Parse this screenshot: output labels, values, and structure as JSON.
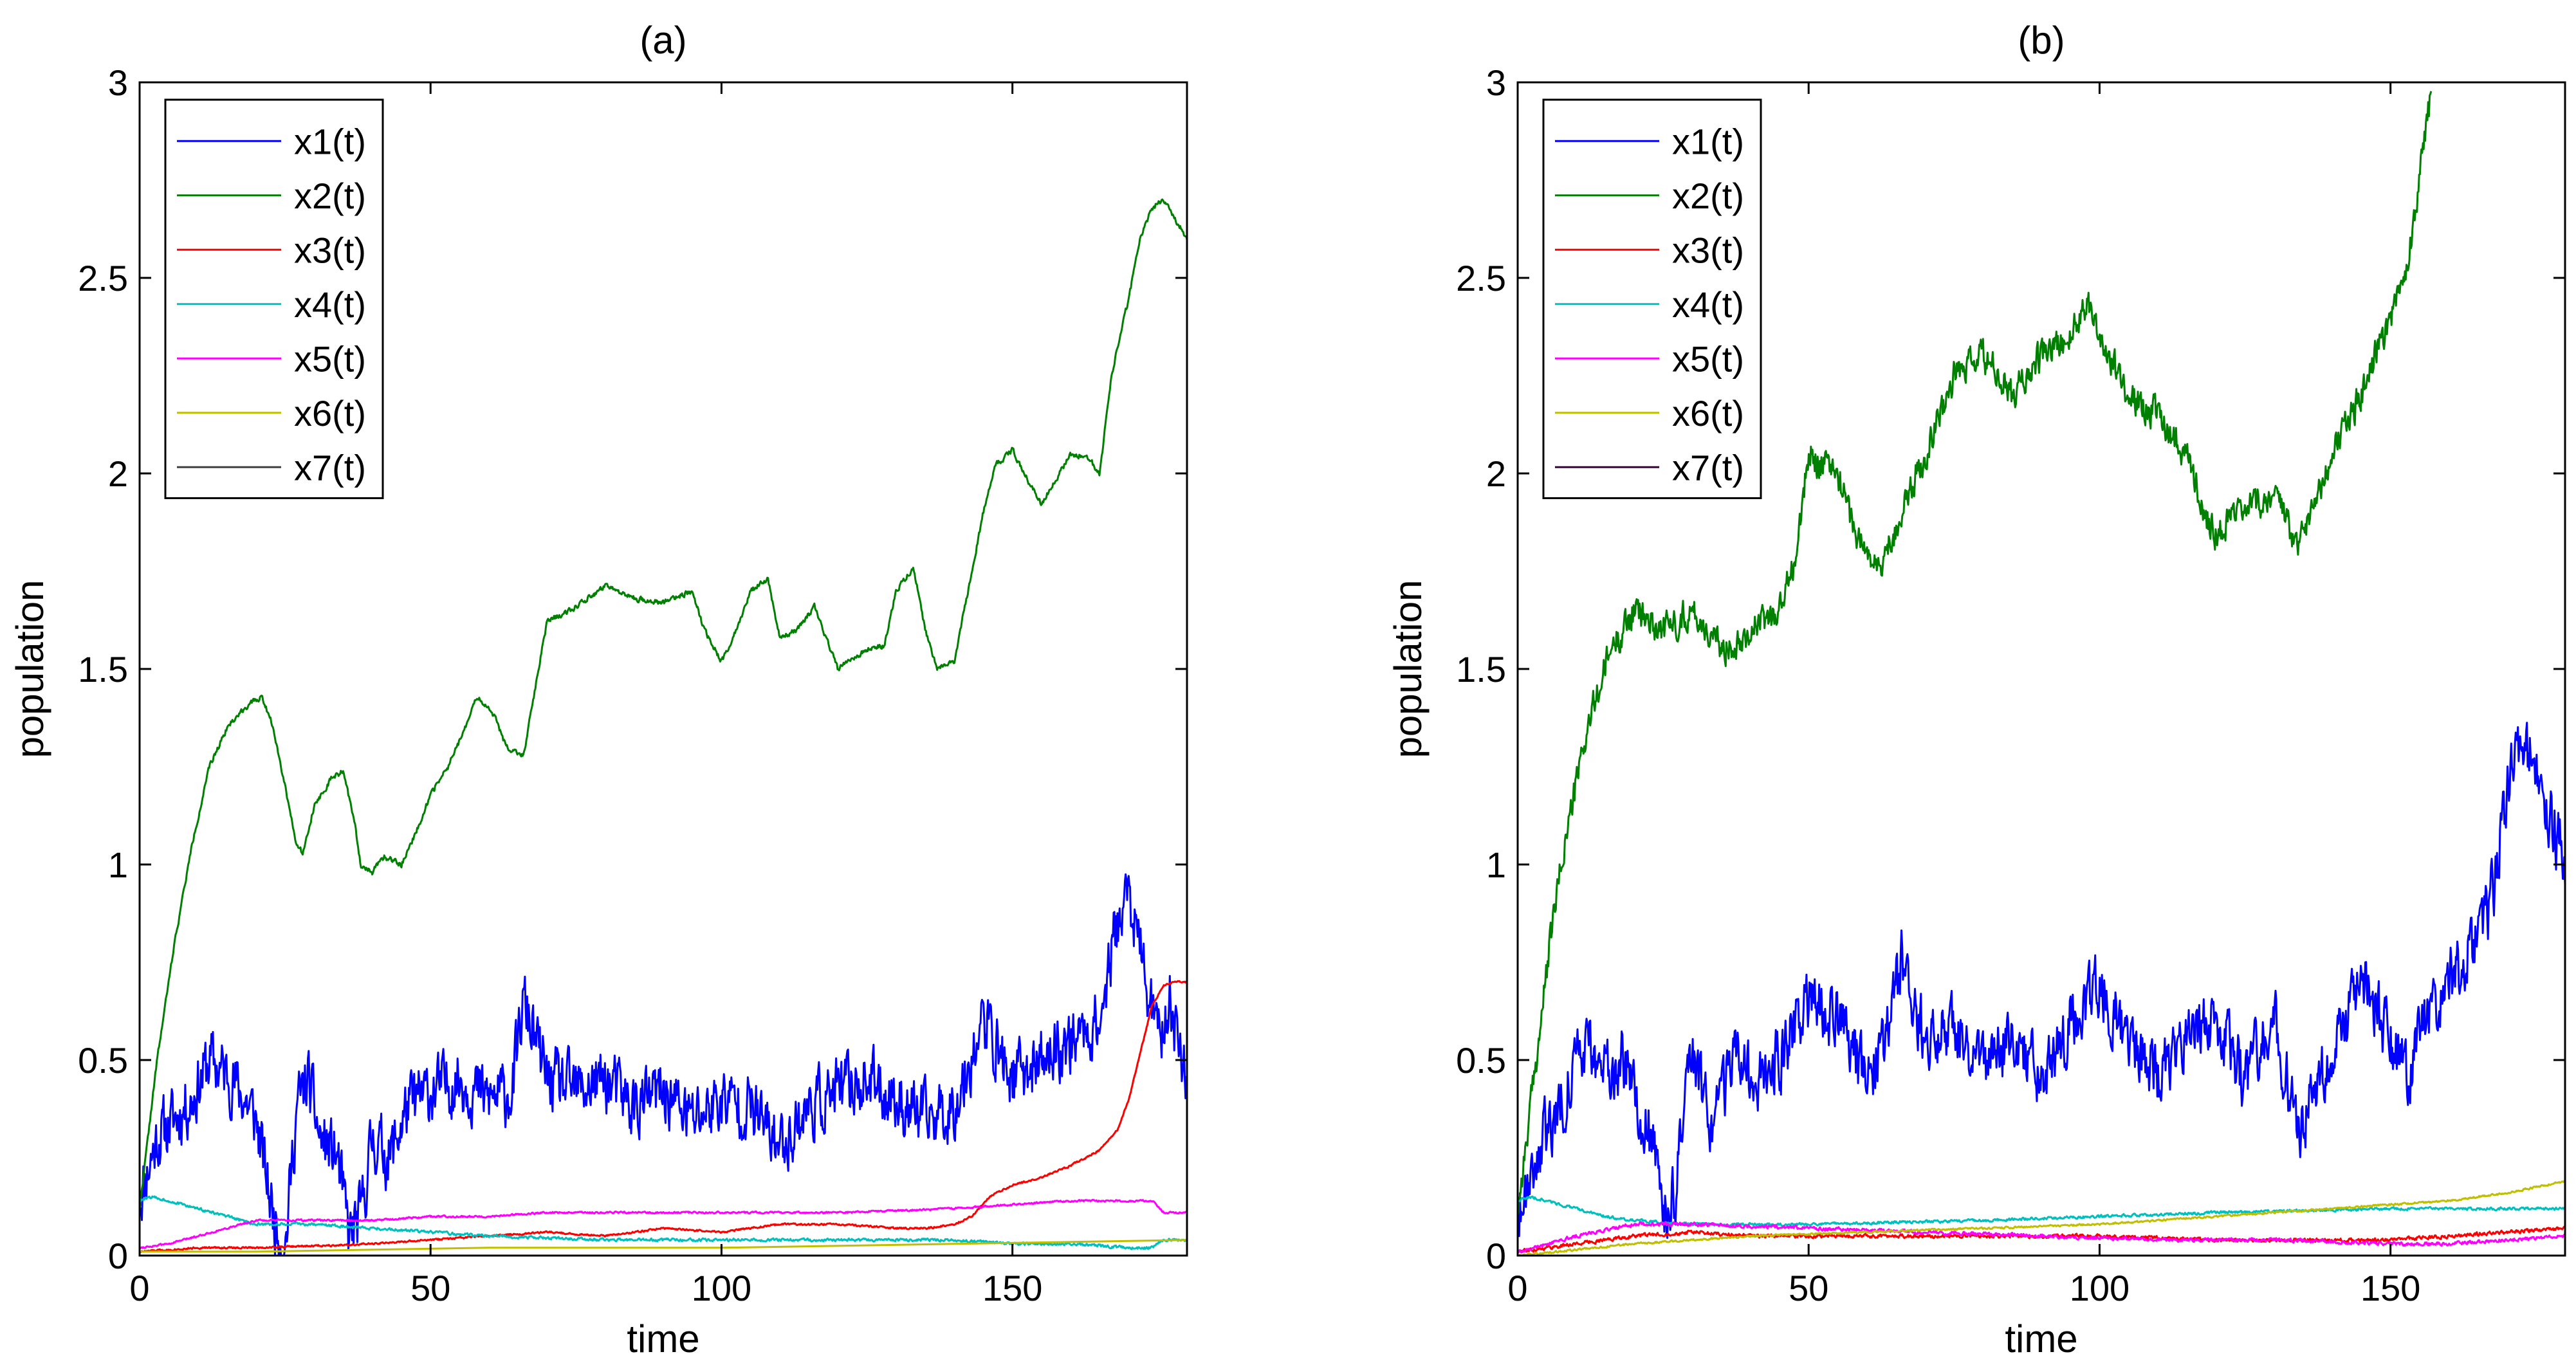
{
  "chart_data": [
    {
      "type": "line",
      "title": "(a)",
      "xlabel": "time",
      "ylabel": "population",
      "xlim": [
        0,
        180
      ],
      "ylim": [
        0,
        3
      ],
      "xticks": [
        0,
        50,
        100,
        150
      ],
      "yticks": [
        0,
        0.5,
        1,
        1.5,
        2,
        2.5,
        3
      ],
      "xtick_labels": [
        "0",
        "50",
        "100",
        "150"
      ],
      "ytick_labels": [
        "0",
        "0.5",
        "1",
        "1.5",
        "2",
        "2.5",
        "3"
      ],
      "legend_position": "top-left",
      "series": [
        {
          "name": "x1(t)",
          "color": "#0000ff",
          "noise": 0.07,
          "seed": 11,
          "x": [
            0,
            3,
            6,
            9,
            12,
            16,
            20,
            23,
            25,
            27,
            29,
            31,
            34,
            36,
            38,
            40,
            43,
            46,
            50,
            55,
            60,
            64,
            66,
            70,
            75,
            80,
            85,
            90,
            95,
            100,
            105,
            110,
            115,
            120,
            125,
            130,
            135,
            140,
            145,
            150,
            155,
            160,
            165,
            168,
            170,
            173,
            175,
            177,
            180
          ],
          "y": [
            0.15,
            0.3,
            0.35,
            0.4,
            0.5,
            0.45,
            0.35,
            0.1,
            0.02,
            0.38,
            0.45,
            0.3,
            0.25,
            0.05,
            0.1,
            0.3,
            0.25,
            0.38,
            0.42,
            0.45,
            0.4,
            0.42,
            0.65,
            0.45,
            0.42,
            0.45,
            0.38,
            0.42,
            0.35,
            0.4,
            0.38,
            0.28,
            0.38,
            0.42,
            0.45,
            0.4,
            0.35,
            0.38,
            0.6,
            0.45,
            0.5,
            0.55,
            0.6,
            0.85,
            0.92,
            0.7,
            0.55,
            0.65,
            0.45
          ]
        },
        {
          "name": "x2(t)",
          "color": "#008000",
          "noise": 0.006,
          "seed": 22,
          "x": [
            0,
            3,
            6,
            9,
            12,
            15,
            18,
            21,
            23,
            25,
            27,
            28,
            30,
            33,
            35,
            37,
            38,
            40,
            42,
            45,
            48,
            50,
            53,
            56,
            58,
            61,
            63,
            66,
            70,
            75,
            80,
            85,
            90,
            95,
            97,
            100,
            102,
            105,
            108,
            110,
            113,
            116,
            120,
            125,
            128,
            130,
            133,
            135,
            137,
            140,
            145,
            147,
            150,
            152,
            155,
            160,
            163,
            165,
            167,
            170,
            172,
            174,
            176,
            178,
            180
          ],
          "y": [
            0.12,
            0.5,
            0.8,
            1.05,
            1.25,
            1.35,
            1.4,
            1.43,
            1.35,
            1.2,
            1.05,
            1.03,
            1.15,
            1.22,
            1.24,
            1.1,
            1.0,
            0.98,
            1.02,
            1.0,
            1.1,
            1.18,
            1.25,
            1.35,
            1.43,
            1.38,
            1.3,
            1.28,
            1.62,
            1.66,
            1.71,
            1.68,
            1.67,
            1.7,
            1.6,
            1.52,
            1.58,
            1.7,
            1.73,
            1.58,
            1.6,
            1.66,
            1.5,
            1.55,
            1.56,
            1.7,
            1.76,
            1.6,
            1.5,
            1.52,
            1.9,
            2.02,
            2.06,
            2.0,
            1.92,
            2.05,
            2.04,
            2.0,
            2.25,
            2.45,
            2.6,
            2.68,
            2.7,
            2.65,
            2.6
          ]
        },
        {
          "name": "x3(t)",
          "color": "#ff0000",
          "noise": 0.002,
          "seed": 33,
          "x": [
            0,
            10,
            20,
            40,
            60,
            70,
            80,
            90,
            100,
            110,
            120,
            130,
            135,
            140,
            143,
            146,
            150,
            155,
            160,
            165,
            168,
            170,
            172,
            174,
            176,
            178,
            180
          ],
          "y": [
            0.01,
            0.02,
            0.02,
            0.03,
            0.05,
            0.06,
            0.05,
            0.07,
            0.06,
            0.08,
            0.08,
            0.07,
            0.07,
            0.08,
            0.1,
            0.15,
            0.18,
            0.2,
            0.23,
            0.27,
            0.32,
            0.4,
            0.52,
            0.64,
            0.69,
            0.7,
            0.7
          ]
        },
        {
          "name": "x4(t)",
          "color": "#00bfbf",
          "noise": 0.003,
          "seed": 44,
          "x": [
            0,
            2,
            5,
            10,
            15,
            20,
            30,
            40,
            50,
            60,
            80,
            100,
            120,
            140,
            150,
            160,
            170,
            174,
            176,
            180
          ],
          "y": [
            0.14,
            0.15,
            0.14,
            0.12,
            0.1,
            0.08,
            0.08,
            0.07,
            0.06,
            0.05,
            0.04,
            0.04,
            0.04,
            0.04,
            0.03,
            0.03,
            0.02,
            0.02,
            0.04,
            0.04
          ]
        },
        {
          "name": "x5(t)",
          "color": "#ff00ff",
          "noise": 0.002,
          "seed": 55,
          "x": [
            0,
            5,
            10,
            15,
            20,
            30,
            40,
            50,
            60,
            70,
            80,
            100,
            120,
            140,
            150,
            160,
            170,
            174,
            176,
            180
          ],
          "y": [
            0.02,
            0.03,
            0.05,
            0.07,
            0.09,
            0.09,
            0.09,
            0.1,
            0.1,
            0.11,
            0.11,
            0.11,
            0.11,
            0.12,
            0.13,
            0.14,
            0.14,
            0.14,
            0.11,
            0.11
          ]
        },
        {
          "name": "x6(t)",
          "color": "#bfbf00",
          "noise": 0,
          "seed": 66,
          "x": [
            0,
            20,
            60,
            100,
            140,
            180
          ],
          "y": [
            0.01,
            0.01,
            0.02,
            0.02,
            0.03,
            0.04
          ]
        },
        {
          "name": "x7(t)",
          "color": "#404040",
          "noise": 0,
          "seed": 77,
          "x": [
            0,
            180
          ],
          "y": [
            0.0,
            0.0
          ]
        }
      ]
    },
    {
      "type": "line",
      "title": "(b)",
      "xlabel": "time",
      "ylabel": "population",
      "xlim": [
        0,
        180
      ],
      "ylim": [
        0,
        3
      ],
      "xticks": [
        0,
        50,
        100,
        150
      ],
      "yticks": [
        0,
        0.5,
        1,
        1.5,
        2,
        2.5,
        3
      ],
      "xtick_labels": [
        "0",
        "50",
        "100",
        "150"
      ],
      "ytick_labels": [
        "0",
        "0.5",
        "1",
        "1.5",
        "2",
        "2.5",
        "3"
      ],
      "legend_position": "top-left",
      "series": [
        {
          "name": "x1(t)",
          "color": "#0000ff",
          "noise": 0.07,
          "seed": 88,
          "x": [
            0,
            3,
            6,
            9,
            12,
            15,
            18,
            20,
            23,
            25,
            27,
            30,
            33,
            35,
            38,
            40,
            45,
            50,
            55,
            60,
            63,
            66,
            70,
            75,
            80,
            85,
            90,
            95,
            100,
            105,
            110,
            115,
            120,
            125,
            130,
            134,
            138,
            140,
            145,
            150,
            153,
            155,
            160,
            165,
            168,
            170,
            172,
            175,
            178,
            180
          ],
          "y": [
            0.12,
            0.25,
            0.35,
            0.45,
            0.55,
            0.45,
            0.5,
            0.4,
            0.3,
            0.1,
            0.15,
            0.5,
            0.35,
            0.4,
            0.5,
            0.45,
            0.5,
            0.65,
            0.6,
            0.45,
            0.55,
            0.75,
            0.55,
            0.6,
            0.5,
            0.55,
            0.45,
            0.6,
            0.7,
            0.55,
            0.45,
            0.55,
            0.6,
            0.45,
            0.6,
            0.3,
            0.45,
            0.5,
            0.7,
            0.55,
            0.45,
            0.6,
            0.7,
            0.8,
            0.95,
            1.2,
            1.3,
            1.25,
            1.1,
            1.0
          ]
        },
        {
          "name": "x2(t)",
          "color": "#008000",
          "noise": 0.035,
          "seed": 99,
          "x": [
            0,
            2,
            4,
            6,
            8,
            10,
            12,
            14,
            16,
            20,
            25,
            30,
            35,
            40,
            45,
            48,
            50,
            55,
            58,
            62,
            66,
            70,
            75,
            80,
            85,
            90,
            95,
            98,
            100,
            105,
            110,
            115,
            118,
            120,
            125,
            130,
            134,
            136,
            140,
            145,
            150,
            153,
            155,
            157
          ],
          "y": [
            0.12,
            0.35,
            0.6,
            0.85,
            1.05,
            1.2,
            1.35,
            1.45,
            1.55,
            1.65,
            1.6,
            1.65,
            1.55,
            1.6,
            1.65,
            1.8,
            2.05,
            2.0,
            1.85,
            1.75,
            1.9,
            2.05,
            2.25,
            2.3,
            2.2,
            2.3,
            2.35,
            2.45,
            2.35,
            2.2,
            2.15,
            2.05,
            1.9,
            1.85,
            1.9,
            1.95,
            1.8,
            1.9,
            2.05,
            2.2,
            2.4,
            2.55,
            2.75,
            2.98
          ]
        },
        {
          "name": "x3(t)",
          "color": "#ff0000",
          "noise": 0.004,
          "seed": 111,
          "x": [
            0,
            10,
            20,
            30,
            40,
            60,
            80,
            100,
            120,
            140,
            150,
            160,
            170,
            180
          ],
          "y": [
            0.01,
            0.03,
            0.05,
            0.06,
            0.05,
            0.05,
            0.05,
            0.05,
            0.04,
            0.04,
            0.04,
            0.05,
            0.06,
            0.07
          ]
        },
        {
          "name": "x4(t)",
          "color": "#00bfbf",
          "noise": 0.003,
          "seed": 122,
          "x": [
            0,
            2,
            5,
            10,
            15,
            20,
            30,
            50,
            80,
            100,
            120,
            150,
            180
          ],
          "y": [
            0.14,
            0.15,
            0.14,
            0.12,
            0.1,
            0.09,
            0.08,
            0.08,
            0.09,
            0.1,
            0.11,
            0.12,
            0.12
          ]
        },
        {
          "name": "x5(t)",
          "color": "#ff00ff",
          "noise": 0.004,
          "seed": 133,
          "x": [
            0,
            10,
            20,
            30,
            50,
            70,
            90,
            110,
            130,
            150,
            160,
            170,
            180
          ],
          "y": [
            0.01,
            0.05,
            0.08,
            0.08,
            0.07,
            0.06,
            0.05,
            0.04,
            0.04,
            0.03,
            0.03,
            0.04,
            0.05
          ]
        },
        {
          "name": "x6(t)",
          "color": "#bfbf00",
          "noise": 0.002,
          "seed": 144,
          "x": [
            0,
            20,
            40,
            60,
            80,
            100,
            120,
            140,
            150,
            160,
            170,
            180
          ],
          "y": [
            0.0,
            0.03,
            0.05,
            0.06,
            0.07,
            0.08,
            0.1,
            0.12,
            0.13,
            0.14,
            0.16,
            0.19
          ]
        },
        {
          "name": "x7(t)",
          "color": "#400040",
          "noise": 0,
          "seed": 155,
          "x": [
            0,
            180
          ],
          "y": [
            0.0,
            0.0
          ]
        }
      ]
    }
  ]
}
